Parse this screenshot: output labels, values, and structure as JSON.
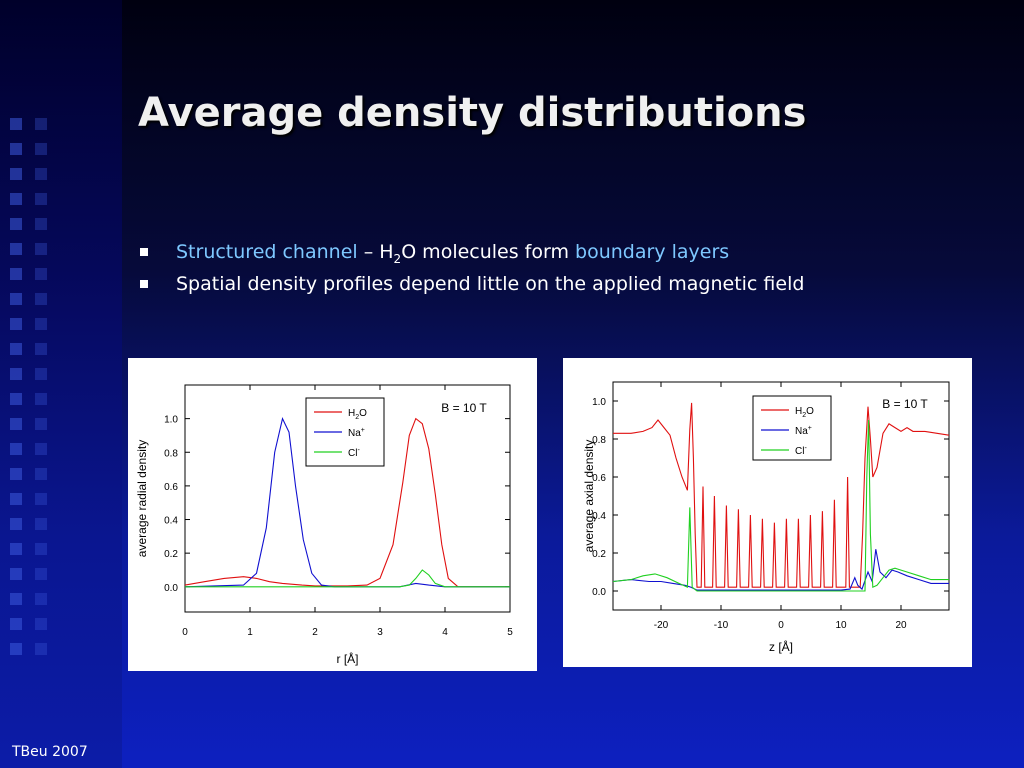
{
  "slide": {
    "title": "Average density distributions",
    "bullets": [
      {
        "hl1": "Structured channel",
        "t1": " – H",
        "sub": "2",
        "t2": "O molecules form ",
        "hl2": "boundary layers"
      },
      {
        "text": "Spatial density profiles depend little on the applied magnetic field"
      }
    ],
    "footer": "TBeu 2007"
  },
  "colors": {
    "h2o": "#e01010",
    "na": "#1010d0",
    "cl": "#20d020"
  },
  "chart_data": [
    {
      "type": "line",
      "xlabel": "r [Å]",
      "ylabel": "average radial density",
      "annotation": "B = 10 T",
      "xlim": [
        0,
        5
      ],
      "ylim": [
        -0.15,
        1.2
      ],
      "xticks": [
        0,
        1,
        2,
        3,
        4,
        5
      ],
      "yticks": [
        0.0,
        0.2,
        0.4,
        0.6,
        0.8,
        1.0
      ],
      "legend_position": "top-center",
      "series": [
        {
          "name": "H2O",
          "legend": {
            "base": "H",
            "sub": "2",
            "after": "O"
          },
          "color_key": "h2o",
          "points": [
            [
              0,
              0.01
            ],
            [
              0.3,
              0.03
            ],
            [
              0.6,
              0.05
            ],
            [
              0.9,
              0.06
            ],
            [
              1.1,
              0.05
            ],
            [
              1.3,
              0.03
            ],
            [
              1.5,
              0.02
            ],
            [
              1.8,
              0.01
            ],
            [
              2.0,
              0.005
            ],
            [
              2.5,
              0.005
            ],
            [
              2.8,
              0.01
            ],
            [
              3.0,
              0.05
            ],
            [
              3.2,
              0.25
            ],
            [
              3.35,
              0.62
            ],
            [
              3.45,
              0.9
            ],
            [
              3.55,
              1.0
            ],
            [
              3.65,
              0.97
            ],
            [
              3.75,
              0.82
            ],
            [
              3.85,
              0.55
            ],
            [
              3.95,
              0.25
            ],
            [
              4.05,
              0.05
            ],
            [
              4.2,
              0.0
            ],
            [
              5,
              0.0
            ]
          ]
        },
        {
          "name": "Na+",
          "legend": {
            "base": "Na",
            "sup": "+"
          },
          "color_key": "na",
          "points": [
            [
              0,
              0.0
            ],
            [
              0.9,
              0.01
            ],
            [
              1.1,
              0.08
            ],
            [
              1.25,
              0.35
            ],
            [
              1.38,
              0.8
            ],
            [
              1.5,
              1.0
            ],
            [
              1.6,
              0.92
            ],
            [
              1.7,
              0.6
            ],
            [
              1.82,
              0.28
            ],
            [
              1.95,
              0.08
            ],
            [
              2.1,
              0.01
            ],
            [
              2.3,
              0.0
            ],
            [
              3.3,
              0.0
            ],
            [
              3.55,
              0.02
            ],
            [
              3.75,
              0.01
            ],
            [
              4.0,
              0.0
            ],
            [
              5,
              0.0
            ]
          ]
        },
        {
          "name": "Cl-",
          "legend": {
            "base": "Cl",
            "sup": "-"
          },
          "color_key": "cl",
          "points": [
            [
              0,
              0.0
            ],
            [
              3.3,
              0.0
            ],
            [
              3.45,
              0.01
            ],
            [
              3.55,
              0.05
            ],
            [
              3.65,
              0.1
            ],
            [
              3.75,
              0.07
            ],
            [
              3.85,
              0.02
            ],
            [
              4.0,
              0.0
            ],
            [
              5,
              0.0
            ]
          ]
        }
      ]
    },
    {
      "type": "line",
      "xlabel": "z [Å]",
      "ylabel": "average axial density",
      "annotation": "B = 10 T",
      "xlim": [
        -28,
        28
      ],
      "ylim": [
        -0.1,
        1.1
      ],
      "xticks": [
        -20,
        -10,
        0,
        10,
        20
      ],
      "yticks": [
        0.0,
        0.2,
        0.4,
        0.6,
        0.8,
        1.0
      ],
      "legend_position": "top-center",
      "series": [
        {
          "name": "H2O",
          "legend": {
            "base": "H",
            "sub": "2",
            "after": "O"
          },
          "color_key": "h2o",
          "points": [
            [
              -28,
              0.83
            ],
            [
              -25,
              0.83
            ],
            [
              -23,
              0.84
            ],
            [
              -21.5,
              0.86
            ],
            [
              -20.5,
              0.9
            ],
            [
              -19.5,
              0.86
            ],
            [
              -18.5,
              0.82
            ],
            [
              -17.5,
              0.7
            ],
            [
              -16.5,
              0.6
            ],
            [
              -15.6,
              0.53
            ],
            [
              -15.2,
              0.85
            ],
            [
              -14.9,
              0.99
            ],
            [
              -14.6,
              0.7
            ],
            [
              -14.3,
              0.3
            ],
            [
              -14.0,
              0.02
            ],
            [
              -13.3,
              0.02
            ],
            [
              -13.0,
              0.55
            ],
            [
              -12.7,
              0.02
            ],
            [
              -11.4,
              0.02
            ],
            [
              -11.1,
              0.5
            ],
            [
              -10.8,
              0.02
            ],
            [
              -9.4,
              0.02
            ],
            [
              -9.1,
              0.45
            ],
            [
              -8.8,
              0.02
            ],
            [
              -7.4,
              0.02
            ],
            [
              -7.1,
              0.43
            ],
            [
              -6.8,
              0.02
            ],
            [
              -5.4,
              0.02
            ],
            [
              -5.1,
              0.4
            ],
            [
              -4.8,
              0.02
            ],
            [
              -3.4,
              0.02
            ],
            [
              -3.1,
              0.38
            ],
            [
              -2.8,
              0.02
            ],
            [
              -1.4,
              0.02
            ],
            [
              -1.1,
              0.36
            ],
            [
              -0.8,
              0.02
            ],
            [
              0.6,
              0.02
            ],
            [
              0.9,
              0.38
            ],
            [
              1.2,
              0.02
            ],
            [
              2.6,
              0.02
            ],
            [
              2.9,
              0.38
            ],
            [
              3.2,
              0.02
            ],
            [
              4.6,
              0.02
            ],
            [
              4.9,
              0.4
            ],
            [
              5.2,
              0.02
            ],
            [
              6.6,
              0.02
            ],
            [
              6.9,
              0.42
            ],
            [
              7.2,
              0.02
            ],
            [
              8.6,
              0.02
            ],
            [
              8.9,
              0.48
            ],
            [
              9.2,
              0.02
            ],
            [
              10.8,
              0.02
            ],
            [
              11.1,
              0.6
            ],
            [
              11.4,
              0.02
            ],
            [
              13.2,
              0.02
            ],
            [
              13.6,
              0.3
            ],
            [
              14.0,
              0.7
            ],
            [
              14.5,
              0.97
            ],
            [
              14.9,
              0.8
            ],
            [
              15.3,
              0.6
            ],
            [
              16.0,
              0.65
            ],
            [
              17.0,
              0.83
            ],
            [
              18.0,
              0.88
            ],
            [
              19.0,
              0.86
            ],
            [
              20.0,
              0.84
            ],
            [
              21.0,
              0.86
            ],
            [
              22.0,
              0.84
            ],
            [
              24.0,
              0.84
            ],
            [
              26.0,
              0.83
            ],
            [
              28,
              0.82
            ]
          ]
        },
        {
          "name": "Na+",
          "legend": {
            "base": "Na",
            "sup": "+"
          },
          "color_key": "na",
          "points": [
            [
              -28,
              0.05
            ],
            [
              -25,
              0.06
            ],
            [
              -22,
              0.05
            ],
            [
              -20,
              0.05
            ],
            [
              -18,
              0.04
            ],
            [
              -16,
              0.03
            ],
            [
              -15,
              0.02
            ],
            [
              -14,
              0.005
            ],
            [
              10,
              0.005
            ],
            [
              11.5,
              0.01
            ],
            [
              12.3,
              0.07
            ],
            [
              12.8,
              0.03
            ],
            [
              13.5,
              0.01
            ],
            [
              14.5,
              0.1
            ],
            [
              15.2,
              0.05
            ],
            [
              15.8,
              0.22
            ],
            [
              16.5,
              0.1
            ],
            [
              17.5,
              0.07
            ],
            [
              18.5,
              0.11
            ],
            [
              19.5,
              0.1
            ],
            [
              21,
              0.08
            ],
            [
              23,
              0.06
            ],
            [
              25,
              0.04
            ],
            [
              28,
              0.04
            ]
          ]
        },
        {
          "name": "Cl-",
          "legend": {
            "base": "Cl",
            "sup": "-"
          },
          "color_key": "cl",
          "points": [
            [
              -28,
              0.05
            ],
            [
              -25,
              0.06
            ],
            [
              -23,
              0.08
            ],
            [
              -21,
              0.09
            ],
            [
              -19,
              0.07
            ],
            [
              -17,
              0.04
            ],
            [
              -15.6,
              0.02
            ],
            [
              -15.2,
              0.44
            ],
            [
              -14.8,
              0.02
            ],
            [
              -14,
              0.0
            ],
            [
              14,
              0.0
            ],
            [
              14.3,
              0.6
            ],
            [
              14.6,
              0.9
            ],
            [
              14.9,
              0.3
            ],
            [
              15.3,
              0.02
            ],
            [
              16,
              0.03
            ],
            [
              17,
              0.07
            ],
            [
              18,
              0.11
            ],
            [
              19,
              0.12
            ],
            [
              20,
              0.11
            ],
            [
              21,
              0.1
            ],
            [
              23,
              0.08
            ],
            [
              25,
              0.06
            ],
            [
              28,
              0.06
            ]
          ]
        }
      ]
    }
  ]
}
